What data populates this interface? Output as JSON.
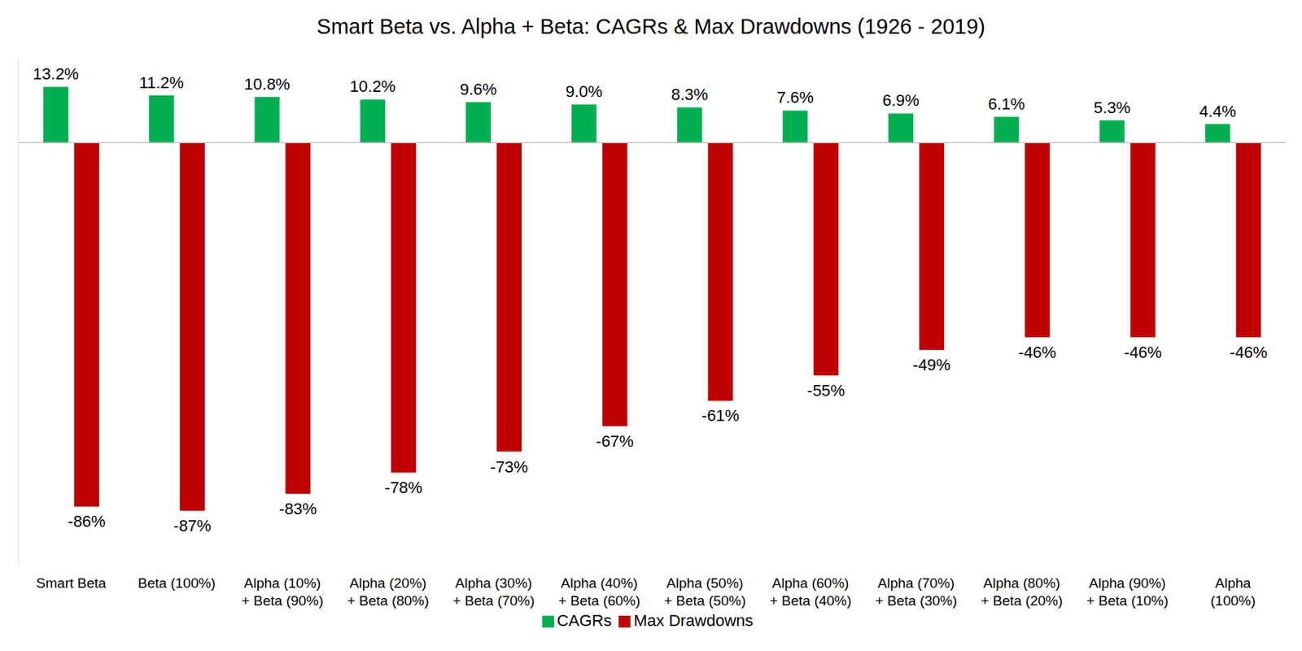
{
  "chart_data": {
    "type": "bar",
    "title": "Smart Beta vs. Alpha + Beta: CAGRs & Max Drawdowns (1926 - 2019)",
    "categories": [
      "Smart Beta",
      "Beta (100%)",
      "Alpha (10%)\n+ Beta (90%)",
      "Alpha (20%)\n+ Beta (80%)",
      "Alpha (30%)\n+ Beta (70%)",
      "Alpha (40%)\n+ Beta (60%)",
      "Alpha (50%)\n+ Beta (50%)",
      "Alpha (60%)\n+ Beta (40%)",
      "Alpha (70%)\n+ Beta (30%)",
      "Alpha (80%)\n+ Beta (20%)",
      "Alpha (90%)\n+ Beta (10%)",
      "Alpha\n(100%)"
    ],
    "series": [
      {
        "name": "CAGRs",
        "color": "#00B050",
        "values": [
          13.2,
          11.2,
          10.8,
          10.2,
          9.6,
          9.0,
          8.3,
          7.6,
          6.9,
          6.1,
          5.3,
          4.4
        ],
        "value_labels": [
          "13.2%",
          "11.2%",
          "10.8%",
          "10.2%",
          "9.6%",
          "9.0%",
          "8.3%",
          "7.6%",
          "6.9%",
          "6.1%",
          "5.3%",
          "4.4%"
        ]
      },
      {
        "name": "Max Drawdowns",
        "color": "#C00000",
        "values": [
          -86,
          -87,
          -83,
          -78,
          -73,
          -67,
          -61,
          -55,
          -49,
          -46,
          -46,
          -46
        ],
        "value_labels": [
          "-86%",
          "-87%",
          "-83%",
          "-78%",
          "-73%",
          "-67%",
          "-61%",
          "-55%",
          "-49%",
          "-46%",
          "-46%",
          "-46%"
        ]
      }
    ],
    "ylim": [
      -100,
      20
    ],
    "data_labels": true,
    "tick_labels": "x",
    "grid": false,
    "legend": "bottom"
  }
}
